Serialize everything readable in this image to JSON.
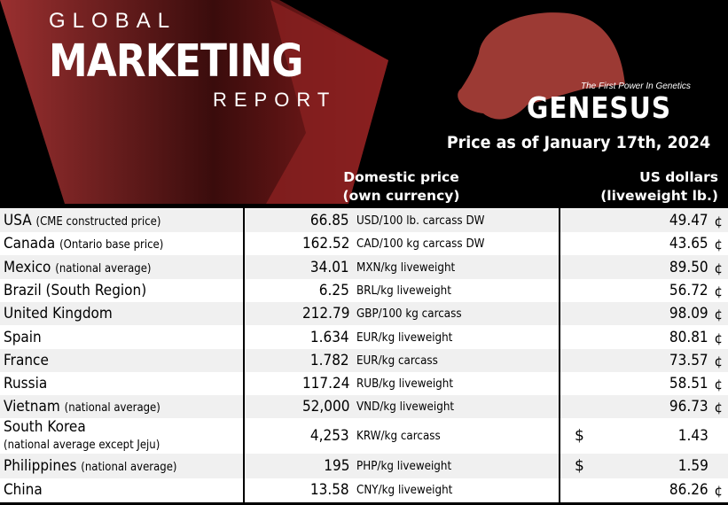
{
  "header": {
    "brand_line1": "GLOBAL",
    "brand_line2": "MARKETING",
    "brand_line3": "REPORT",
    "logo_tagline": "The First Power In Genetics",
    "logo_name": "GENESUS",
    "price_date": "Price as of January 17th, 2024",
    "col_domestic_1": "Domestic price",
    "col_domestic_2": "(own currency)",
    "col_usd_1": "US dollars",
    "col_usd_2": "(liveweight lb.)"
  },
  "colors": {
    "brand_red": "#8b2323",
    "header_bg": "#000000",
    "alt_row": "#f0f0f0"
  },
  "rows": [
    {
      "country": "USA",
      "note": "(CME constructed price)",
      "price": "66.85",
      "unit": "USD/100 lb. carcass DW",
      "usd": "49.47",
      "usd_unit": "¢"
    },
    {
      "country": "Canada",
      "note": "(Ontario base price)",
      "price": "162.52",
      "unit": "CAD/100 kg carcass DW",
      "usd": "43.65",
      "usd_unit": "¢"
    },
    {
      "country": "Mexico",
      "note": "(national average)",
      "price": "34.01",
      "unit": "MXN/kg liveweight",
      "usd": "89.50",
      "usd_unit": "¢"
    },
    {
      "country": "Brazil (South Region)",
      "note": "",
      "price": "6.25",
      "unit": "BRL/kg liveweight",
      "usd": "56.72",
      "usd_unit": "¢"
    },
    {
      "country": "United Kingdom",
      "note": "",
      "price": "212.79",
      "unit": "GBP/100 kg carcass",
      "usd": "98.09",
      "usd_unit": "¢"
    },
    {
      "country": "Spain",
      "note": "",
      "price": "1.634",
      "unit": "EUR/kg liveweight",
      "usd": "80.81",
      "usd_unit": "¢"
    },
    {
      "country": "France",
      "note": "",
      "price": "1.782",
      "unit": "EUR/kg carcass",
      "usd": "73.57",
      "usd_unit": "¢"
    },
    {
      "country": "Russia",
      "note": "",
      "price": "117.24",
      "unit": "RUB/kg liveweight",
      "usd": "58.51",
      "usd_unit": "¢"
    },
    {
      "country": "Vietnam",
      "note": "(national average)",
      "price": "52,000",
      "unit": "VND/kg liveweight",
      "usd": "96.73",
      "usd_unit": "¢"
    },
    {
      "country": "South Korea",
      "note": "(national average except Jeju)",
      "price": "4,253",
      "unit": "KRW/kg carcass",
      "usd": "1.43",
      "usd_prefix": "$"
    },
    {
      "country": "Philippines",
      "note": "(national average)",
      "price": "195",
      "unit": "PHP/kg liveweight",
      "usd": "1.59",
      "usd_prefix": "$"
    },
    {
      "country": "China",
      "note": "",
      "price": "13.58",
      "unit": "CNY/kg liveweight",
      "usd": "86.26",
      "usd_unit": "¢"
    }
  ]
}
